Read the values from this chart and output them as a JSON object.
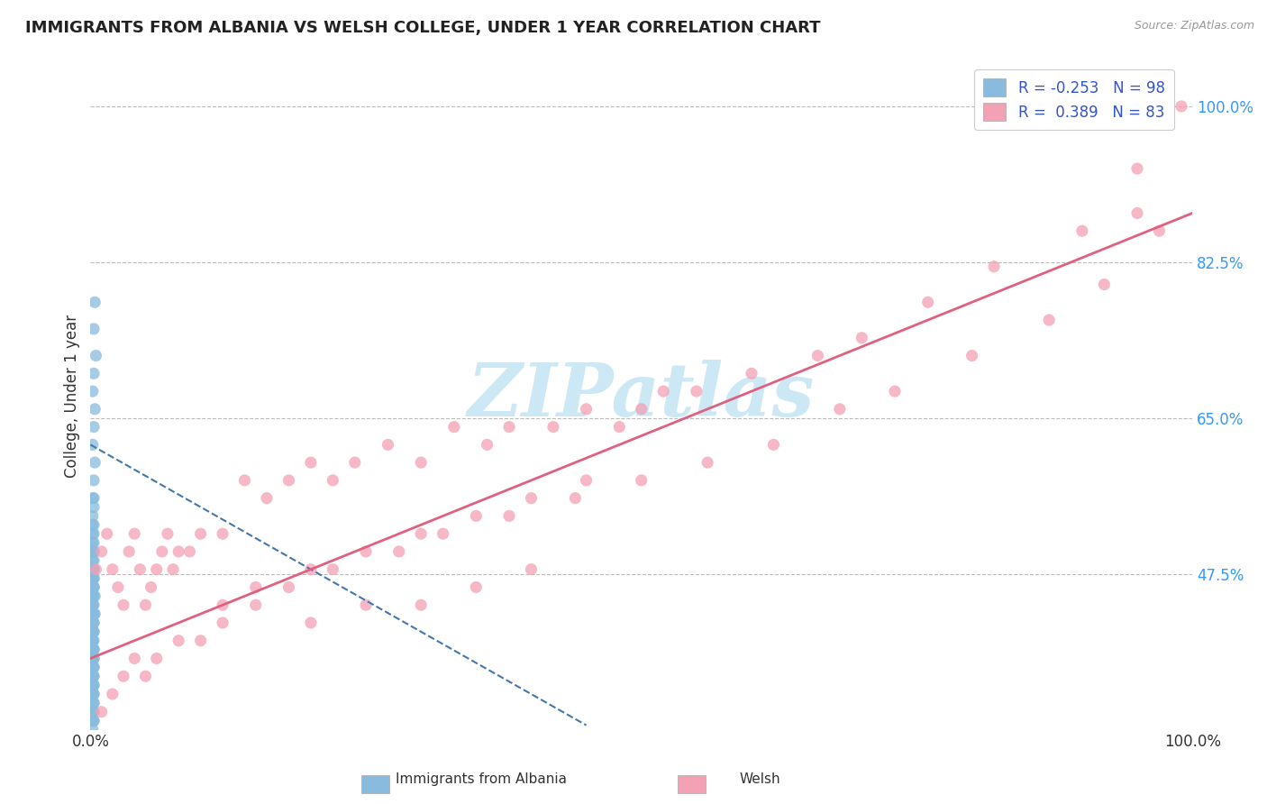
{
  "title": "IMMIGRANTS FROM ALBANIA VS WELSH COLLEGE, UNDER 1 YEAR CORRELATION CHART",
  "source": "Source: ZipAtlas.com",
  "ylabel": "College, Under 1 year",
  "legend_label1": "Immigrants from Albania",
  "legend_label2": "Welsh",
  "r1": -0.253,
  "n1": 98,
  "r2": 0.389,
  "n2": 83,
  "ytick_values": [
    0.475,
    0.65,
    0.825,
    1.0
  ],
  "ytick_labels": [
    "47.5%",
    "65.0%",
    "82.5%",
    "100.0%"
  ],
  "color_blue": "#88bbdd",
  "color_pink": "#f4a0b5",
  "color_blue_line": "#4477aa",
  "color_pink_line": "#e06080",
  "watermark_color": "#cce8f4",
  "xlim": [
    0.0,
    1.0
  ],
  "ylim": [
    0.3,
    1.05
  ],
  "blue_x": [
    0.004,
    0.003,
    0.005,
    0.003,
    0.002,
    0.004,
    0.003,
    0.002,
    0.004,
    0.003,
    0.002,
    0.003,
    0.002,
    0.003,
    0.003,
    0.002,
    0.003,
    0.002,
    0.003,
    0.003,
    0.002,
    0.003,
    0.002,
    0.003,
    0.002,
    0.003,
    0.002,
    0.003,
    0.002,
    0.003,
    0.004,
    0.002,
    0.003,
    0.002,
    0.003,
    0.002,
    0.003,
    0.002,
    0.004,
    0.002,
    0.003,
    0.002,
    0.003,
    0.002,
    0.003,
    0.002,
    0.003,
    0.002,
    0.003,
    0.002,
    0.003,
    0.002,
    0.003,
    0.002,
    0.003,
    0.002,
    0.003,
    0.002,
    0.003,
    0.002,
    0.003,
    0.002,
    0.003,
    0.002,
    0.003,
    0.002,
    0.003,
    0.002,
    0.003,
    0.002,
    0.003,
    0.002,
    0.003,
    0.002,
    0.003,
    0.002,
    0.003,
    0.002,
    0.003,
    0.002,
    0.003,
    0.002,
    0.003,
    0.002,
    0.003,
    0.002,
    0.003,
    0.002,
    0.003,
    0.002,
    0.003,
    0.002,
    0.003,
    0.002,
    0.003,
    0.002,
    0.003,
    0.002
  ],
  "blue_y": [
    0.78,
    0.75,
    0.72,
    0.7,
    0.68,
    0.66,
    0.64,
    0.62,
    0.6,
    0.58,
    0.56,
    0.55,
    0.54,
    0.53,
    0.52,
    0.51,
    0.51,
    0.5,
    0.5,
    0.49,
    0.49,
    0.48,
    0.48,
    0.48,
    0.47,
    0.47,
    0.47,
    0.46,
    0.46,
    0.46,
    0.45,
    0.45,
    0.45,
    0.44,
    0.44,
    0.44,
    0.43,
    0.43,
    0.43,
    0.42,
    0.42,
    0.42,
    0.41,
    0.41,
    0.41,
    0.4,
    0.4,
    0.4,
    0.39,
    0.39,
    0.39,
    0.38,
    0.38,
    0.38,
    0.37,
    0.37,
    0.37,
    0.37,
    0.36,
    0.36,
    0.36,
    0.36,
    0.35,
    0.35,
    0.35,
    0.35,
    0.34,
    0.34,
    0.34,
    0.34,
    0.33,
    0.33,
    0.33,
    0.32,
    0.32,
    0.32,
    0.31,
    0.31,
    0.31,
    0.3,
    0.39,
    0.41,
    0.43,
    0.45,
    0.47,
    0.48,
    0.5,
    0.53,
    0.56,
    0.36,
    0.38,
    0.4,
    0.42,
    0.44,
    0.46,
    0.48,
    0.5,
    0.52
  ],
  "pink_x": [
    0.005,
    0.01,
    0.015,
    0.02,
    0.025,
    0.03,
    0.035,
    0.04,
    0.045,
    0.05,
    0.055,
    0.06,
    0.065,
    0.07,
    0.075,
    0.08,
    0.09,
    0.1,
    0.12,
    0.14,
    0.16,
    0.18,
    0.2,
    0.22,
    0.24,
    0.27,
    0.3,
    0.33,
    0.36,
    0.38,
    0.42,
    0.45,
    0.48,
    0.52,
    0.3,
    0.35,
    0.4,
    0.2,
    0.25,
    0.1,
    0.12,
    0.15,
    0.18,
    0.22,
    0.28,
    0.32,
    0.38,
    0.44,
    0.5,
    0.56,
    0.62,
    0.68,
    0.73,
    0.8,
    0.87,
    0.92,
    0.97,
    0.5,
    0.55,
    0.6,
    0.66,
    0.7,
    0.76,
    0.82,
    0.9,
    0.95,
    0.4,
    0.45,
    0.35,
    0.3,
    0.25,
    0.2,
    0.15,
    0.12,
    0.08,
    0.06,
    0.05,
    0.04,
    0.03,
    0.02,
    0.01,
    0.99,
    0.95
  ],
  "pink_y": [
    0.48,
    0.5,
    0.52,
    0.48,
    0.46,
    0.44,
    0.5,
    0.52,
    0.48,
    0.44,
    0.46,
    0.48,
    0.5,
    0.52,
    0.48,
    0.5,
    0.5,
    0.52,
    0.52,
    0.58,
    0.56,
    0.58,
    0.6,
    0.58,
    0.6,
    0.62,
    0.6,
    0.64,
    0.62,
    0.64,
    0.64,
    0.66,
    0.64,
    0.68,
    0.44,
    0.46,
    0.48,
    0.42,
    0.44,
    0.4,
    0.42,
    0.44,
    0.46,
    0.48,
    0.5,
    0.52,
    0.54,
    0.56,
    0.58,
    0.6,
    0.62,
    0.66,
    0.68,
    0.72,
    0.76,
    0.8,
    0.86,
    0.66,
    0.68,
    0.7,
    0.72,
    0.74,
    0.78,
    0.82,
    0.86,
    0.88,
    0.56,
    0.58,
    0.54,
    0.52,
    0.5,
    0.48,
    0.46,
    0.44,
    0.4,
    0.38,
    0.36,
    0.38,
    0.36,
    0.34,
    0.32,
    1.0,
    0.93
  ]
}
